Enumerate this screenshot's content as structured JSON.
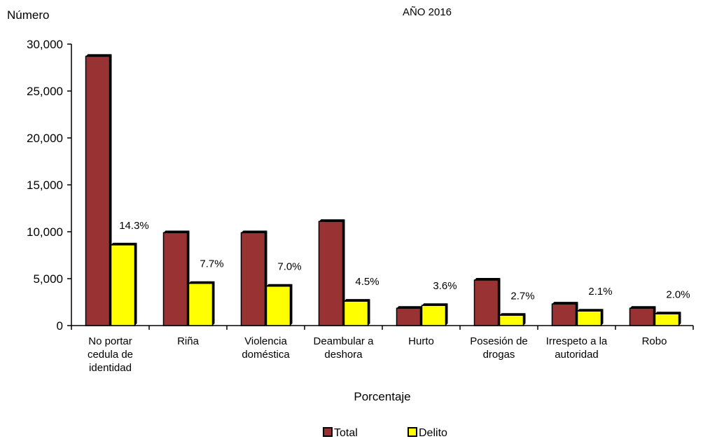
{
  "chart_data": {
    "type": "bar",
    "title": "AÑO 2016",
    "ylabel": "Número",
    "xlabel": "Porcentaje",
    "ylim": [
      0,
      30000
    ],
    "yticks": [
      0,
      5000,
      10000,
      15000,
      20000,
      25000,
      30000
    ],
    "ytick_labels": [
      "0",
      "5,000",
      "10,000",
      "15,000",
      "20,000",
      "25,000",
      "30,000"
    ],
    "categories": [
      [
        "No portar",
        "cedula de",
        "identidad"
      ],
      [
        "Riña"
      ],
      [
        "Violencia",
        "doméstica"
      ],
      [
        "Deambular a",
        "deshora"
      ],
      [
        "Hurto"
      ],
      [
        "Posesión de",
        "drogas"
      ],
      [
        "Irrespeto a la",
        "autoridad"
      ],
      [
        "Robo"
      ]
    ],
    "series": [
      {
        "name": "Total",
        "color": "#993333",
        "values": [
          28700,
          9900,
          9900,
          11100,
          1850,
          4850,
          2300,
          1850
        ]
      },
      {
        "name": "Delito",
        "color": "#ffff00",
        "values": [
          8600,
          4500,
          4200,
          2600,
          2150,
          1100,
          1550,
          1250
        ]
      }
    ],
    "data_labels": [
      "14.3%",
      "7.7%",
      "7.0%",
      "4.5%",
      "3.6%",
      "2.7%",
      "2.1%",
      "2.0%"
    ],
    "legend_position": "bottom",
    "grid": false
  }
}
